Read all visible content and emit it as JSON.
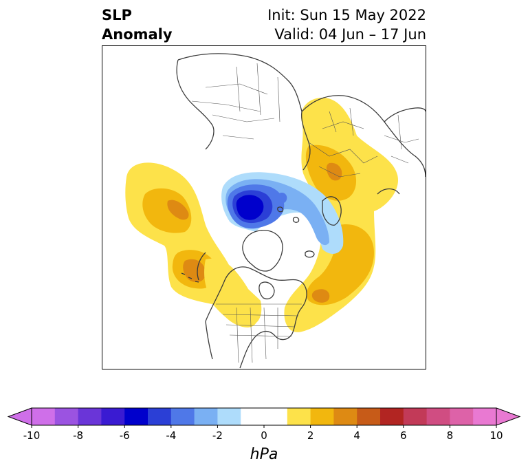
{
  "title": {
    "left_line1": "SLP",
    "left_line2": "Anomaly",
    "right_line1": "Init: Sun 15 May 2022",
    "right_line2": "Valid: 04 Jun – 17 Jun"
  },
  "colorbar": {
    "unit": "hPa",
    "tick_labels": [
      "-10",
      "-8",
      "-6",
      "-4",
      "-2",
      "0",
      "2",
      "4",
      "6",
      "8",
      "10"
    ],
    "colors": [
      "#cf6fe9",
      "#9b53e1",
      "#6a35d8",
      "#3a1bd2",
      "#0000cc",
      "#2b3fd6",
      "#4f78e8",
      "#7ab0f3",
      "#aedcfb",
      "#ffffff",
      "#ffffff",
      "#fde24a",
      "#f2b70e",
      "#de8a13",
      "#c75b18",
      "#b22522",
      "#c23a58",
      "#d04d82",
      "#dd62a8",
      "#e979d2"
    ],
    "levels": [
      -10,
      -9,
      -8,
      -7,
      -6,
      -5,
      -4,
      -3,
      -2,
      -1,
      0,
      1,
      2,
      3,
      4,
      5,
      6,
      7,
      8,
      9,
      10
    ]
  },
  "map": {
    "projection": "polar-stereographic-north",
    "field": "sea level pressure anomaly"
  }
}
